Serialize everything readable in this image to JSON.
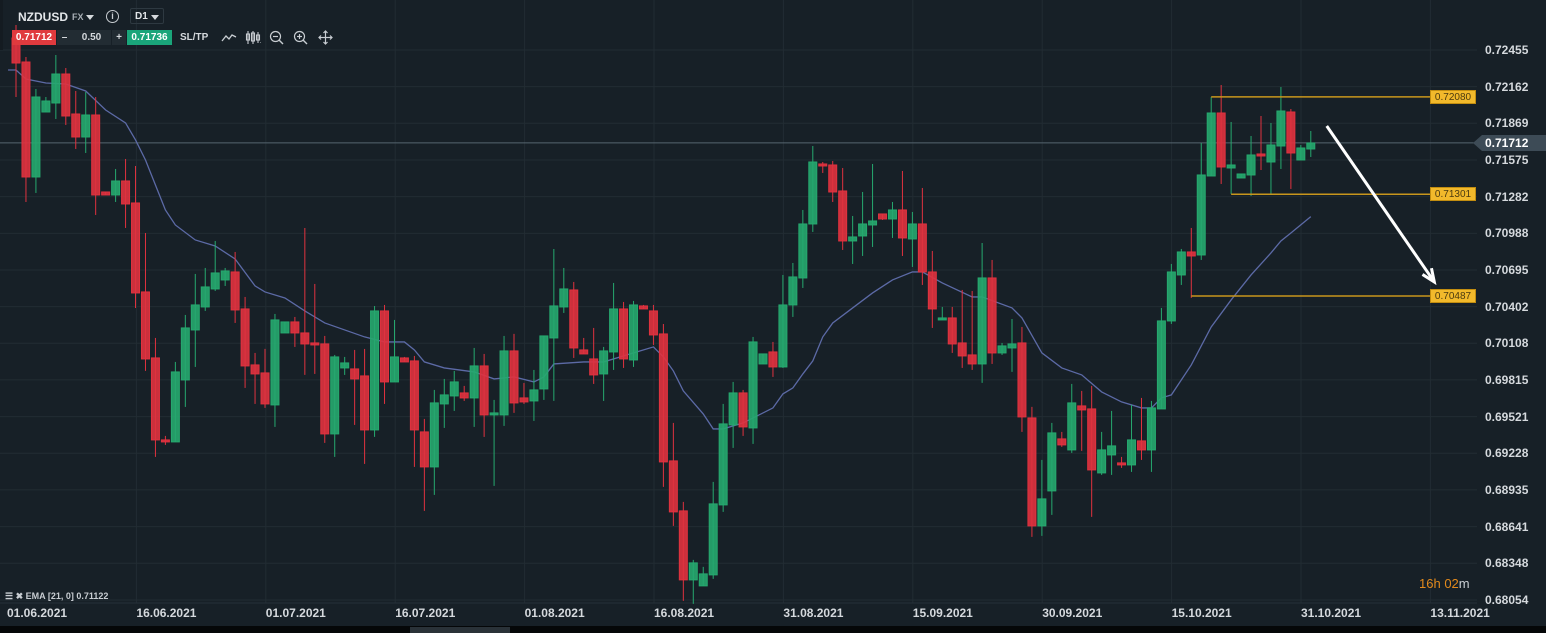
{
  "toolbar": {
    "symbol": "NZDUSD",
    "market": "FX",
    "info": "i",
    "timeframe": "D1",
    "bid": "0.71712",
    "minus": "–",
    "quantity": "0.50",
    "plus": "+",
    "ask": "0.71736",
    "sltp": "SL/TP",
    "icons": [
      "line-chart-icon",
      "candlestick-type-icon",
      "zoom-out-icon",
      "zoom-in-icon",
      "move-crosshair-icon"
    ]
  },
  "colors": {
    "up": "#26a96f",
    "down": "#e0323f",
    "ema": "#5c6aa6",
    "level": "#c8961c",
    "arrow": "#ffffff",
    "background": "#172027"
  },
  "indicator": {
    "label": "EMA [21, 0] 0.71122"
  },
  "timer": {
    "hours": "16h",
    "minutes": "02",
    "m": "m"
  },
  "current_price": "0.71712",
  "levels": [
    {
      "price": 0.7208,
      "label": "0.72080",
      "from_bar": 120
    },
    {
      "price": 0.71301,
      "label": "0.71301",
      "from_bar": 122
    },
    {
      "price": 0.70487,
      "label": "0.70487",
      "from_bar": 118
    }
  ],
  "chart_data": {
    "type": "candlestick",
    "title": "NZDUSD D1",
    "y_ticks": [
      "0.72455",
      "0.72162",
      "0.71869",
      "0.71575",
      "0.71282",
      "0.70988",
      "0.70695",
      "0.70402",
      "0.70108",
      "0.69815",
      "0.69521",
      "0.69228",
      "0.68935",
      "0.68641",
      "0.68348",
      "0.68054"
    ],
    "ylim": [
      0.68054,
      0.72455
    ],
    "x_ticks": [
      "01.06.2021",
      "16.06.2021",
      "01.07.2021",
      "16.07.2021",
      "01.08.2021",
      "16.08.2021",
      "31.08.2021",
      "15.09.2021",
      "30.09.2021",
      "15.10.2021",
      "31.10.2021",
      "13.11.2021"
    ],
    "grid": true,
    "ohlc": [
      [
        0.72551,
        0.72655,
        0.72079,
        0.72351
      ],
      [
        0.72359,
        0.72399,
        0.71239,
        0.71439
      ],
      [
        0.71439,
        0.72143,
        0.71311,
        0.72079
      ],
      [
        0.71959,
        0.72079,
        0.71959,
        0.72047
      ],
      [
        0.72031,
        0.72415,
        0.71903,
        0.72263
      ],
      [
        0.72263,
        0.72311,
        0.71855,
        0.71927
      ],
      [
        0.71943,
        0.72127,
        0.71663,
        0.71759
      ],
      [
        0.71759,
        0.72119,
        0.71631,
        0.71935
      ],
      [
        0.71935,
        0.72079,
        0.71135,
        0.71295
      ],
      [
        0.71319,
        0.71319,
        0.71295,
        0.71295
      ],
      [
        0.71295,
        0.71503,
        0.71239,
        0.71407
      ],
      [
        0.71407,
        0.71583,
        0.71031,
        0.71223
      ],
      [
        0.71231,
        0.71527,
        0.70391,
        0.70511
      ],
      [
        0.70519,
        0.70991,
        0.69887,
        0.69983
      ],
      [
        0.69991,
        0.70151,
        0.69199,
        0.69335
      ],
      [
        0.69335,
        0.69367,
        0.69295,
        0.69319
      ],
      [
        0.69319,
        0.69959,
        0.69319,
        0.69879
      ],
      [
        0.69815,
        0.70335,
        0.69599,
        0.70231
      ],
      [
        0.70215,
        0.70663,
        0.69919,
        0.70415
      ],
      [
        0.70399,
        0.70711,
        0.70367,
        0.70559
      ],
      [
        0.70543,
        0.70927,
        0.70527,
        0.70671
      ],
      [
        0.70615,
        0.70711,
        0.70567,
        0.70687
      ],
      [
        0.70679,
        0.70839,
        0.70271,
        0.70375
      ],
      [
        0.70383,
        0.70479,
        0.69751,
        0.69927
      ],
      [
        0.69935,
        0.70031,
        0.69623,
        0.69863
      ],
      [
        0.69871,
        0.70063,
        0.69591,
        0.69623
      ],
      [
        0.69615,
        0.70343,
        0.69439,
        0.70295
      ],
      [
        0.70191,
        0.70279,
        0.70191,
        0.70279
      ],
      [
        0.70279,
        0.70319,
        0.70079,
        0.70191
      ],
      [
        0.70191,
        0.71031,
        0.69855,
        0.70103
      ],
      [
        0.70111,
        0.70583,
        0.69863,
        0.70095
      ],
      [
        0.70103,
        0.70167,
        0.69311,
        0.69383
      ],
      [
        0.69383,
        0.70015,
        0.69199,
        0.69999
      ],
      [
        0.69911,
        0.69999,
        0.69855,
        0.69951
      ],
      [
        0.69903,
        0.70055,
        0.69455,
        0.69823
      ],
      [
        0.69847,
        0.70063,
        0.69143,
        0.69415
      ],
      [
        0.69415,
        0.70407,
        0.69359,
        0.70367
      ],
      [
        0.70367,
        0.70415,
        0.69623,
        0.69799
      ],
      [
        0.69799,
        0.70295,
        0.69799,
        0.69999
      ],
      [
        0.69991,
        0.69999,
        0.69959,
        0.69959
      ],
      [
        0.69967,
        0.70007,
        0.69119,
        0.69415
      ],
      [
        0.69399,
        0.69503,
        0.68767,
        0.69119
      ],
      [
        0.69119,
        0.69735,
        0.68895,
        0.69631
      ],
      [
        0.69623,
        0.69823,
        0.69431,
        0.69695
      ],
      [
        0.69687,
        0.69887,
        0.69567,
        0.69799
      ],
      [
        0.69711,
        0.69767,
        0.69647,
        0.69671
      ],
      [
        0.69671,
        0.70071,
        0.69439,
        0.69927
      ],
      [
        0.69927,
        0.70023,
        0.69359,
        0.69535
      ],
      [
        0.69535,
        0.69655,
        0.68967,
        0.69551
      ],
      [
        0.69535,
        0.70167,
        0.69447,
        0.70047
      ],
      [
        0.70047,
        0.70183,
        0.69551,
        0.69631
      ],
      [
        0.69671,
        0.69791,
        0.69623,
        0.69639
      ],
      [
        0.69647,
        0.69895,
        0.69487,
        0.69735
      ],
      [
        0.69743,
        0.70167,
        0.69655,
        0.70167
      ],
      [
        0.70151,
        0.70863,
        0.69647,
        0.70407
      ],
      [
        0.70399,
        0.70711,
        0.70351,
        0.70543
      ],
      [
        0.70535,
        0.70599,
        0.69991,
        0.70071
      ],
      [
        0.70055,
        0.70151,
        0.70023,
        0.70023
      ],
      [
        0.69983,
        0.70231,
        0.69783,
        0.69855
      ],
      [
        0.69863,
        0.70079,
        0.69647,
        0.70047
      ],
      [
        0.70039,
        0.70591,
        0.69895,
        0.70383
      ],
      [
        0.70383,
        0.70439,
        0.69911,
        0.69983
      ],
      [
        0.69975,
        0.70447,
        0.69919,
        0.70415
      ],
      [
        0.70407,
        0.70415,
        0.70383,
        0.70383
      ],
      [
        0.70367,
        0.70415,
        0.70095,
        0.70175
      ],
      [
        0.70183,
        0.70263,
        0.68959,
        0.69159
      ],
      [
        0.69167,
        0.69471,
        0.68647,
        0.68759
      ],
      [
        0.68767,
        0.68839,
        0.68047,
        0.68215
      ],
      [
        0.68215,
        0.68375,
        0.68023,
        0.68351
      ],
      [
        0.68167,
        0.68319,
        0.68167,
        0.68263
      ],
      [
        0.68255,
        0.68999,
        0.68223,
        0.68823
      ],
      [
        0.68815,
        0.69623,
        0.68759,
        0.69463
      ],
      [
        0.69455,
        0.69799,
        0.69271,
        0.69711
      ],
      [
        0.69711,
        0.69735,
        0.69367,
        0.69439
      ],
      [
        0.69431,
        0.70159,
        0.69303,
        0.70119
      ],
      [
        0.69943,
        0.70023,
        0.69943,
        0.70023
      ],
      [
        0.70039,
        0.70119,
        0.69839,
        0.69919
      ],
      [
        0.69919,
        0.70655,
        0.69911,
        0.70415
      ],
      [
        0.70415,
        0.70751,
        0.70319,
        0.70639
      ],
      [
        0.70631,
        0.71175,
        0.70551,
        0.71063
      ],
      [
        0.71063,
        0.71687,
        0.70999,
        0.71559
      ],
      [
        0.71543,
        0.71559,
        0.71471,
        0.71527
      ],
      [
        0.71535,
        0.71567,
        0.71239,
        0.71319
      ],
      [
        0.71327,
        0.71511,
        0.70855,
        0.70927
      ],
      [
        0.70927,
        0.71127,
        0.70743,
        0.70959
      ],
      [
        0.70967,
        0.71319,
        0.70807,
        0.71063
      ],
      [
        0.71055,
        0.71543,
        0.70879,
        0.71087
      ],
      [
        0.71143,
        0.71143,
        0.71095,
        0.71103
      ],
      [
        0.71103,
        0.71239,
        0.70951,
        0.71175
      ],
      [
        0.71175,
        0.71487,
        0.70807,
        0.70951
      ],
      [
        0.70943,
        0.71159,
        0.70719,
        0.71063
      ],
      [
        0.71063,
        0.71351,
        0.70575,
        0.70679
      ],
      [
        0.70679,
        0.70847,
        0.70231,
        0.70383
      ],
      [
        0.70295,
        0.70399,
        0.70295,
        0.70311
      ],
      [
        0.70311,
        0.70399,
        0.70031,
        0.70103
      ],
      [
        0.70111,
        0.70535,
        0.69911,
        0.70007
      ],
      [
        0.70015,
        0.70527,
        0.69895,
        0.69943
      ],
      [
        0.69943,
        0.70911,
        0.69791,
        0.70631
      ],
      [
        0.70631,
        0.70775,
        0.69943,
        0.70031
      ],
      [
        0.70031,
        0.70111,
        0.70015,
        0.70087
      ],
      [
        0.70071,
        0.70303,
        0.69879,
        0.70103
      ],
      [
        0.70111,
        0.70239,
        0.69399,
        0.69519
      ],
      [
        0.69511,
        0.69599,
        0.68559,
        0.68647
      ],
      [
        0.68647,
        0.69175,
        0.68567,
        0.68863
      ],
      [
        0.68927,
        0.69471,
        0.68735,
        0.69391
      ],
      [
        0.69343,
        0.69399,
        0.69279,
        0.69295
      ],
      [
        0.69255,
        0.69783,
        0.69231,
        0.69631
      ],
      [
        0.69607,
        0.69727,
        0.69247,
        0.69575
      ],
      [
        0.69583,
        0.69767,
        0.68719,
        0.69095
      ],
      [
        0.69071,
        0.69399,
        0.69055,
        0.69255
      ],
      [
        0.69215,
        0.69567,
        0.69055,
        0.69287
      ],
      [
        0.69151,
        0.69199,
        0.69111,
        0.69135
      ],
      [
        0.69135,
        0.69615,
        0.69079,
        0.69335
      ],
      [
        0.69327,
        0.69671,
        0.69175,
        0.69255
      ],
      [
        0.69255,
        0.69647,
        0.69079,
        0.69591
      ],
      [
        0.69583,
        0.70391,
        0.69583,
        0.70287
      ],
      [
        0.70287,
        0.70743,
        0.70263,
        0.70679
      ],
      [
        0.70655,
        0.70863,
        0.70575,
        0.70839
      ],
      [
        0.70839,
        0.71031,
        0.70471,
        0.70807
      ],
      [
        0.70815,
        0.71711,
        0.70775,
        0.71455
      ],
      [
        0.71447,
        0.72079,
        0.71447,
        0.71951
      ],
      [
        0.71951,
        0.72175,
        0.71383,
        0.71519
      ],
      [
        0.71511,
        0.71879,
        0.71303,
        0.71535
      ],
      [
        0.71431,
        0.71463,
        0.71431,
        0.71463
      ],
      [
        0.71455,
        0.71767,
        0.71287,
        0.71615
      ],
      [
        0.71623,
        0.71927,
        0.71495,
        0.71607
      ],
      [
        0.71559,
        0.71871,
        0.71303,
        0.71695
      ],
      [
        0.71687,
        0.72159,
        0.71503,
        0.71967
      ],
      [
        0.71959,
        0.71983,
        0.71343,
        0.71631
      ],
      [
        0.71575,
        0.71695,
        0.71575,
        0.71671
      ],
      [
        0.71663,
        0.71807,
        0.71599,
        0.71711
      ]
    ],
    "ema_21": [
      [
        -0.8,
        0.72295
      ],
      [
        0,
        0.72295
      ],
      [
        1,
        0.72223
      ],
      [
        3,
        0.72191
      ],
      [
        5,
        0.72183
      ],
      [
        7,
        0.72127
      ],
      [
        9,
        0.71975
      ],
      [
        11,
        0.71871
      ],
      [
        12,
        0.71735
      ],
      [
        13,
        0.71575
      ],
      [
        14,
        0.71375
      ],
      [
        15,
        0.71175
      ],
      [
        16,
        0.71055
      ],
      [
        18,
        0.70935
      ],
      [
        20,
        0.70887
      ],
      [
        22,
        0.70783
      ],
      [
        24,
        0.70567
      ],
      [
        25,
        0.70519
      ],
      [
        27,
        0.70471
      ],
      [
        29,
        0.70367
      ],
      [
        31,
        0.70271
      ],
      [
        33,
        0.70215
      ],
      [
        35,
        0.70159
      ],
      [
        37,
        0.70119
      ],
      [
        39,
        0.70119
      ],
      [
        40,
        0.70055
      ],
      [
        41,
        0.69959
      ],
      [
        43,
        0.69911
      ],
      [
        46,
        0.69879
      ],
      [
        48,
        0.69823
      ],
      [
        50,
        0.69839
      ],
      [
        52,
        0.69799
      ],
      [
        53,
        0.69839
      ],
      [
        54,
        0.69943
      ],
      [
        57,
        0.69959
      ],
      [
        59,
        0.69959
      ],
      [
        62,
        0.70031
      ],
      [
        64,
        0.70079
      ],
      [
        65,
        0.69999
      ],
      [
        66,
        0.69887
      ],
      [
        67,
        0.69727
      ],
      [
        69,
        0.69543
      ],
      [
        70,
        0.69423
      ],
      [
        71,
        0.69423
      ],
      [
        73,
        0.69471
      ],
      [
        76,
        0.69591
      ],
      [
        77,
        0.69703
      ],
      [
        78,
        0.69751
      ],
      [
        79,
        0.69863
      ],
      [
        80,
        0.69967
      ],
      [
        81,
        0.70159
      ],
      [
        82,
        0.70271
      ],
      [
        84,
        0.70391
      ],
      [
        86,
        0.70511
      ],
      [
        88,
        0.70615
      ],
      [
        90,
        0.70679
      ],
      [
        91,
        0.70679
      ],
      [
        93,
        0.70591
      ],
      [
        96,
        0.70479
      ],
      [
        97,
        0.70479
      ],
      [
        100,
        0.70391
      ],
      [
        101,
        0.70311
      ],
      [
        103,
        0.70031
      ],
      [
        105,
        0.69911
      ],
      [
        107,
        0.69855
      ],
      [
        109,
        0.69719
      ],
      [
        111,
        0.69639
      ],
      [
        113,
        0.69591
      ],
      [
        114,
        0.69591
      ],
      [
        115,
        0.69671
      ],
      [
        116,
        0.69695
      ],
      [
        118,
        0.69935
      ],
      [
        120,
        0.70239
      ],
      [
        122,
        0.70455
      ],
      [
        124,
        0.70655
      ],
      [
        126,
        0.70831
      ],
      [
        127,
        0.70927
      ],
      [
        128,
        0.70991
      ],
      [
        130,
        0.71122
      ]
    ],
    "annotation_arrow": {
      "from": [
        131.6,
        0.71847
      ],
      "to": [
        142.4,
        0.70599
      ],
      "meaning": "bearish target"
    }
  }
}
